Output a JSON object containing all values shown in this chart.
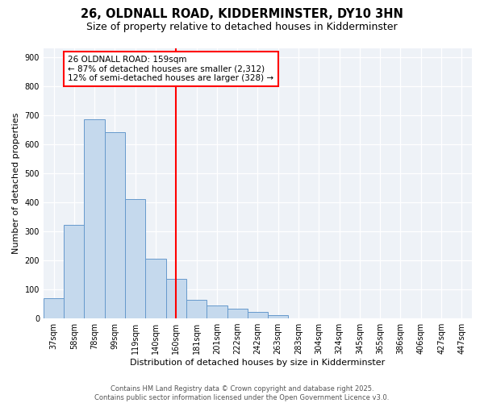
{
  "title": "26, OLDNALL ROAD, KIDDERMINSTER, DY10 3HN",
  "subtitle": "Size of property relative to detached houses in Kidderminster",
  "xlabel": "Distribution of detached houses by size in Kidderminster",
  "ylabel": "Number of detached properties",
  "categories": [
    "37sqm",
    "58sqm",
    "78sqm",
    "99sqm",
    "119sqm",
    "140sqm",
    "160sqm",
    "181sqm",
    "201sqm",
    "222sqm",
    "242sqm",
    "263sqm",
    "283sqm",
    "304sqm",
    "324sqm",
    "345sqm",
    "365sqm",
    "386sqm",
    "406sqm",
    "427sqm",
    "447sqm"
  ],
  "values": [
    70,
    322,
    685,
    640,
    410,
    207,
    137,
    65,
    46,
    34,
    22,
    10,
    0,
    0,
    0,
    0,
    0,
    0,
    0,
    0,
    0
  ],
  "bar_color": "#c5d9ed",
  "bar_edge_color": "#6699cc",
  "vline_x_idx": 6,
  "vline_color": "red",
  "annotation_text": "26 OLDNALL ROAD: 159sqm\n← 87% of detached houses are smaller (2,312)\n12% of semi-detached houses are larger (328) →",
  "ylim": [
    0,
    930
  ],
  "yticks": [
    0,
    100,
    200,
    300,
    400,
    500,
    600,
    700,
    800,
    900
  ],
  "bg_color": "#eef2f7",
  "grid_color": "#ffffff",
  "footer": "Contains HM Land Registry data © Crown copyright and database right 2025.\nContains public sector information licensed under the Open Government Licence v3.0.",
  "title_fontsize": 10.5,
  "subtitle_fontsize": 9,
  "label_fontsize": 8,
  "tick_fontsize": 7,
  "footer_fontsize": 6,
  "annot_fontsize": 7.5
}
